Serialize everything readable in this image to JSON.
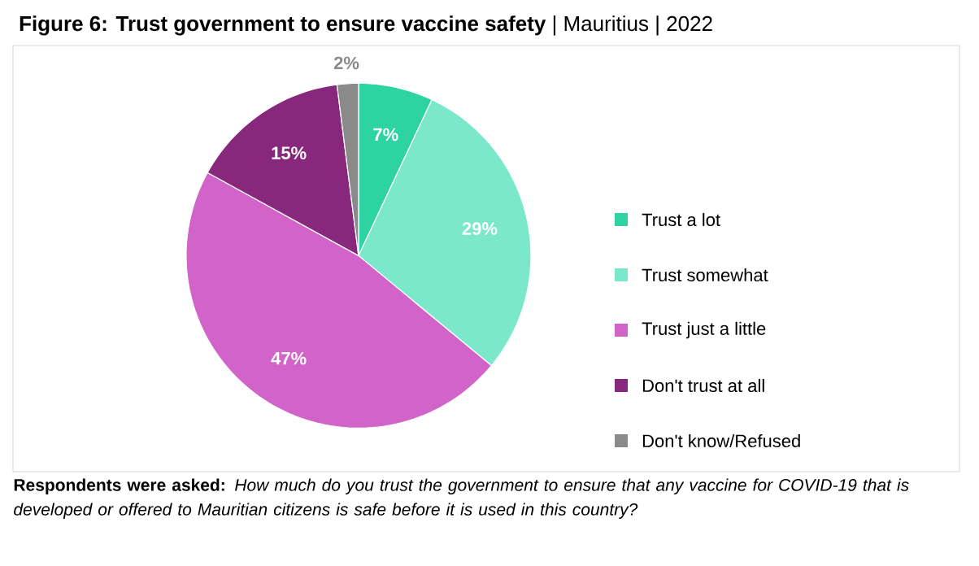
{
  "chart_data": {
    "type": "pie",
    "title": "**Figure 6: Trust government to ensure vaccine safety** | Mauritius | 2022",
    "categories": [
      "Trust a lot",
      "Trust somewhat",
      "Trust just a little",
      "Don't trust at all",
      "Don't know/Refused"
    ],
    "values": [
      7,
      29,
      47,
      15,
      2
    ],
    "value_labels": [
      "7%",
      "29%",
      "47%",
      "15%",
      "2%"
    ],
    "colors": [
      "#2dd3a3",
      "#7be8cb",
      "#d163c9",
      "#87287c",
      "#8a8a8a"
    ],
    "legend": "right",
    "annotations": [
      "**Respondents were asked:** *How much do you trust the government to ensure that any vaccine for COVID-19 that is developed or offered to Mauritian citizens is safe before it is used in this country?*"
    ]
  }
}
